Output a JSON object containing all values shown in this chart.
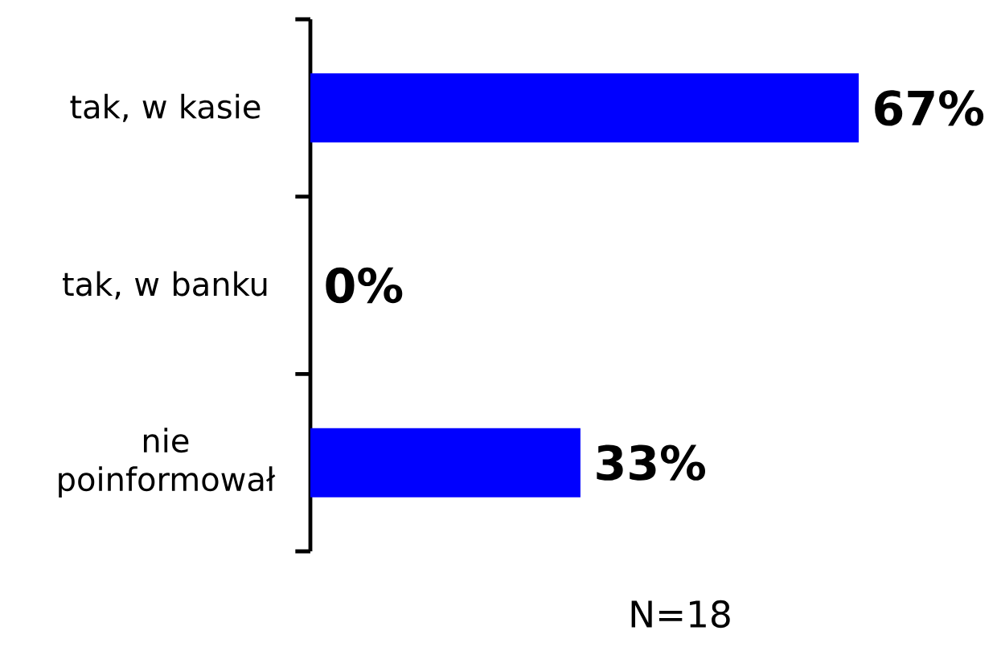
{
  "chart_data": {
    "type": "bar",
    "orientation": "horizontal",
    "categories": [
      "tak, w kasie",
      "tak, w banku",
      "nie poinformował"
    ],
    "values": [
      67,
      0,
      33
    ],
    "value_labels": [
      "67%",
      "0%",
      "33%"
    ],
    "color": "#0000ff",
    "annotations": [
      "N=18"
    ]
  }
}
